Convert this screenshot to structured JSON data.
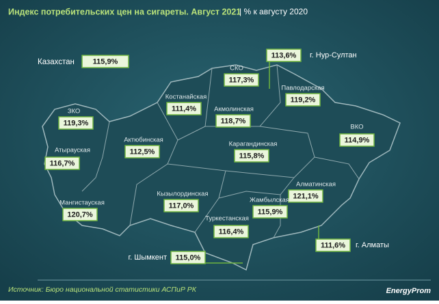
{
  "header": {
    "title": "Индекс потребительских цен на сигареты. Август 2021",
    "subtitle": "| % к августу 2020"
  },
  "total": {
    "name": "Казахстан",
    "value": "115,9%"
  },
  "regions": [
    {
      "name": "г. Нур-Султан",
      "value": "113,6%"
    },
    {
      "name": "СКО",
      "value": "117,3%"
    },
    {
      "name": "Павлодарская",
      "value": "119,2%"
    },
    {
      "name": "Костанайская",
      "value": "111,4%"
    },
    {
      "name": "Акмолинская",
      "value": "118,7%"
    },
    {
      "name": "ЗКО",
      "value": "119,3%"
    },
    {
      "name": "ВКО",
      "value": "114,9%"
    },
    {
      "name": "Актюбинская",
      "value": "112,5%"
    },
    {
      "name": "Карагандинская",
      "value": "115,8%"
    },
    {
      "name": "Атырауская",
      "value": "116,7%"
    },
    {
      "name": "Кызылординская",
      "value": "117,0%"
    },
    {
      "name": "Алматинская",
      "value": "121,1%"
    },
    {
      "name": "Жамбылская",
      "value": "115,9%"
    },
    {
      "name": "Мангистауская",
      "value": "120,7%"
    },
    {
      "name": "Туркестанская",
      "value": "116,4%"
    },
    {
      "name": "г. Алматы",
      "value": "111,6%"
    },
    {
      "name": "г. Шымкент",
      "value": "115,0%"
    }
  ],
  "footer": {
    "source": "Источник: Бюро национальной статистики АСПиР РК",
    "brand": "EnergyProm"
  }
}
